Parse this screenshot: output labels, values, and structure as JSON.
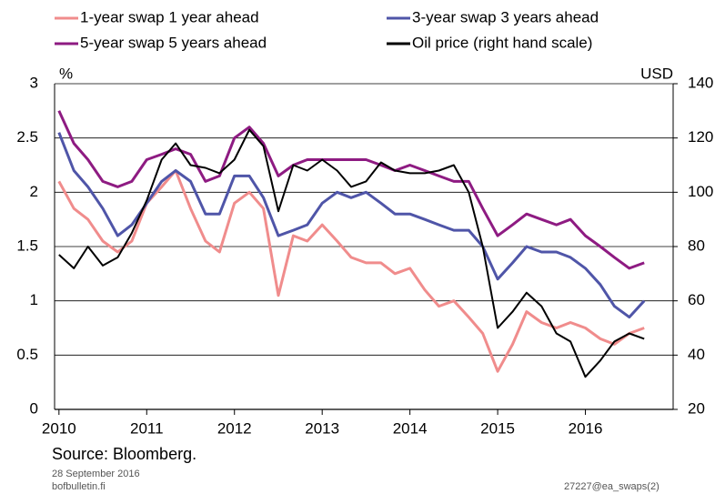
{
  "chart_data": {
    "type": "line",
    "y_label": "%",
    "y2_label": "USD",
    "x": [
      2010,
      2010.17,
      2010.33,
      2010.5,
      2010.67,
      2010.83,
      2011,
      2011.17,
      2011.33,
      2011.5,
      2011.67,
      2011.83,
      2012,
      2012.17,
      2012.33,
      2012.5,
      2012.67,
      2012.83,
      2013,
      2013.17,
      2013.33,
      2013.5,
      2013.67,
      2013.83,
      2014,
      2014.17,
      2014.33,
      2014.5,
      2014.67,
      2014.83,
      2015,
      2015.17,
      2015.33,
      2015.5,
      2015.67,
      2015.83,
      2016,
      2016.17,
      2016.33,
      2016.5,
      2016.67
    ],
    "series": [
      {
        "name": "1-year swap 1 year ahead",
        "color": "#f08c8c",
        "values": [
          2.1,
          1.85,
          1.75,
          1.55,
          1.45,
          1.55,
          1.9,
          2.05,
          2.2,
          1.85,
          1.55,
          1.45,
          1.9,
          2.0,
          1.85,
          1.05,
          1.6,
          1.55,
          1.7,
          1.55,
          1.4,
          1.35,
          1.35,
          1.25,
          1.3,
          1.1,
          0.95,
          1.0,
          0.85,
          0.7,
          0.35,
          0.6,
          0.9,
          0.8,
          0.75,
          0.8,
          0.75,
          0.65,
          0.6,
          0.7,
          0.75
        ]
      },
      {
        "name": "3-year swap 3 years ahead",
        "color": "#4f55a8",
        "values": [
          2.55,
          2.2,
          2.05,
          1.85,
          1.6,
          1.7,
          1.9,
          2.1,
          2.2,
          2.1,
          1.8,
          1.8,
          2.15,
          2.15,
          1.95,
          1.6,
          1.65,
          1.7,
          1.9,
          2.0,
          1.95,
          2.0,
          1.9,
          1.8,
          1.8,
          1.75,
          1.7,
          1.65,
          1.65,
          1.5,
          1.2,
          1.35,
          1.5,
          1.45,
          1.45,
          1.4,
          1.3,
          1.15,
          0.95,
          0.85,
          1.0
        ]
      },
      {
        "name": "5-year swap 5 years ahead",
        "color": "#8e1b82",
        "values": [
          2.75,
          2.45,
          2.3,
          2.1,
          2.05,
          2.1,
          2.3,
          2.35,
          2.4,
          2.35,
          2.1,
          2.15,
          2.5,
          2.6,
          2.45,
          2.15,
          2.25,
          2.3,
          2.3,
          2.3,
          2.3,
          2.3,
          2.25,
          2.2,
          2.25,
          2.2,
          2.15,
          2.1,
          2.1,
          1.85,
          1.6,
          1.7,
          1.8,
          1.75,
          1.7,
          1.75,
          1.6,
          1.5,
          1.4,
          1.3,
          1.35
        ]
      },
      {
        "name": "Oil price (right hand scale)",
        "color": "#000000",
        "axis": "y2",
        "values": [
          77,
          72,
          80,
          73,
          76,
          85,
          97,
          112,
          118,
          110,
          109,
          107,
          112,
          123,
          117,
          93,
          110,
          108,
          112,
          108,
          102,
          104,
          111,
          108,
          107,
          107,
          108,
          110,
          100,
          80,
          50,
          56,
          63,
          58,
          48,
          45,
          32,
          38,
          45,
          48,
          46
        ]
      }
    ],
    "xlim": [
      2009.95,
      2017.0
    ],
    "xticks": [
      2010,
      2011,
      2012,
      2013,
      2014,
      2015,
      2016
    ],
    "ylim": [
      0,
      3
    ],
    "yticks": [
      0,
      0.5,
      1,
      1.5,
      2,
      2.5,
      3
    ],
    "y2lim": [
      20,
      140
    ],
    "y2ticks": [
      20,
      40,
      60,
      80,
      100,
      120,
      140
    ],
    "grid": true
  },
  "footer": {
    "source": "Source: Bloomberg.",
    "date": "28 September 2016",
    "site": "bofbulletin.fi",
    "code": "27227@ea_swaps(2)"
  }
}
